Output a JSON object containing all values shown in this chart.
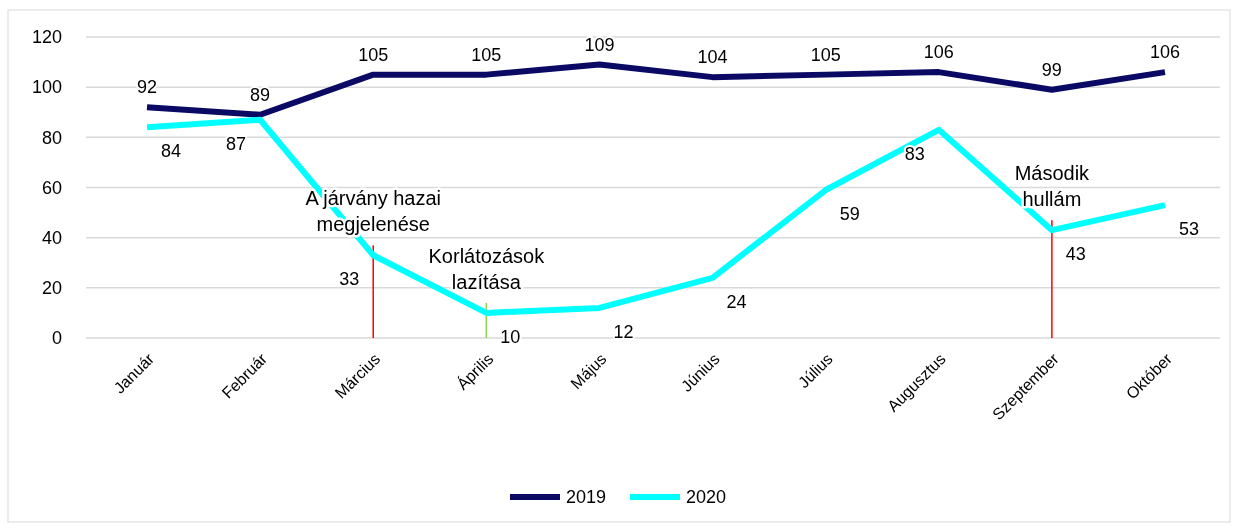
{
  "chart_data": {
    "type": "line",
    "categories": [
      "Január",
      "Február",
      "Március",
      "Április",
      "Május",
      "Június",
      "Július",
      "Augusztus",
      "Szeptember",
      "Október"
    ],
    "series": [
      {
        "name": "2019",
        "color": "#0a0a64",
        "values": [
          92,
          89,
          105,
          105,
          109,
          104,
          105,
          106,
          99,
          106
        ]
      },
      {
        "name": "2020",
        "color": "#00ffff",
        "values": [
          84,
          87,
          33,
          10,
          12,
          24,
          59,
          83,
          43,
          53
        ]
      }
    ],
    "ylim": [
      0,
      120
    ],
    "yticks": [
      0,
      20,
      40,
      60,
      80,
      100,
      120
    ],
    "grid": "y",
    "legend": "bottom",
    "data_labels": true,
    "marker": "none",
    "line_style": "solid",
    "ref_lines": [
      {
        "axis": "x",
        "value": "Március",
        "label": "A járvány hazai megjelenése",
        "color": "#ff0000"
      },
      {
        "axis": "x",
        "value": "Április",
        "label": "Korlátozások lazítása",
        "color": "#92d050"
      },
      {
        "axis": "x",
        "value": "Szeptember",
        "label": "Második hullám",
        "color": "#ff0000"
      }
    ]
  }
}
